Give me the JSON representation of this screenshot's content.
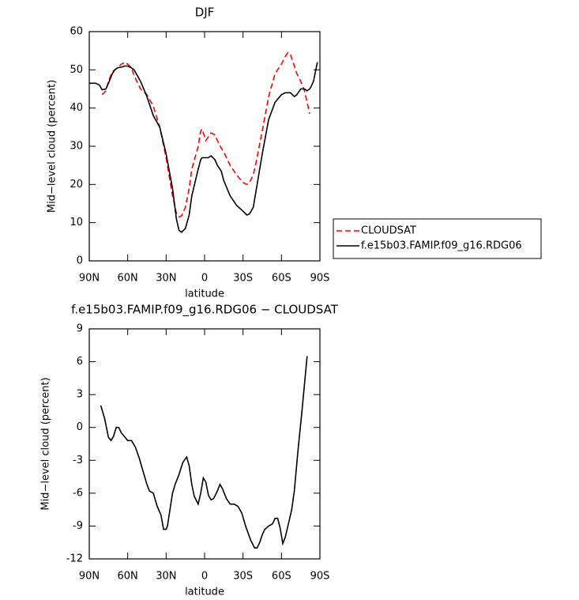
{
  "chart_data": [
    {
      "type": "line",
      "title": "DJF",
      "xlabel": "latitude",
      "ylabel": "Mid−level cloud (percent)",
      "x": [
        90,
        87,
        85,
        82,
        80,
        77,
        75,
        72,
        70,
        68,
        65,
        62,
        60,
        57,
        55,
        50,
        45,
        40,
        35,
        30,
        25,
        22,
        20,
        18,
        15,
        12,
        10,
        5,
        3,
        2,
        0,
        -1,
        -3,
        -5,
        -8,
        -10,
        -13,
        -15,
        -20,
        -25,
        -30,
        -33,
        -35,
        -38,
        -40,
        -45,
        -50,
        -55,
        -60,
        -63,
        -65,
        -67,
        -70,
        -72,
        -75,
        -78,
        -80,
        -82,
        -83,
        -85,
        -88
      ],
      "series": [
        {
          "name": "CLOUDSAT",
          "color": "#ff0000",
          "line_style": "dashed",
          "values": [
            null,
            null,
            null,
            null,
            43.5,
            44.5,
            47,
            49.5,
            50,
            50.5,
            51.5,
            52,
            51.5,
            50.5,
            48.5,
            45,
            43.5,
            40.5,
            35,
            27,
            17,
            12.5,
            11.5,
            11.8,
            14,
            19,
            24,
            30,
            34,
            34.5,
            32.5,
            31.5,
            32.5,
            33.5,
            33,
            31.5,
            29.5,
            28.5,
            25,
            22.5,
            20.5,
            20,
            20.5,
            22.5,
            25.5,
            34,
            43,
            49,
            51.5,
            53.5,
            54.5,
            54,
            51,
            49,
            47,
            44.5,
            41.5,
            38.5,
            null,
            null,
            null
          ]
        },
        {
          "name": "f.e15b03.FAMIP.f09_g16.RDG06",
          "color": "#000000",
          "line_style": "solid",
          "values": [
            46.5,
            46.5,
            46.5,
            46,
            44.8,
            45,
            46.5,
            49,
            50,
            50.5,
            50.7,
            51,
            51,
            50.5,
            50,
            47,
            43,
            38,
            35,
            28,
            19,
            11,
            8,
            7.5,
            8.5,
            12,
            17,
            24,
            26.5,
            27,
            27,
            27,
            27,
            27.5,
            26.5,
            25,
            23.5,
            21,
            17,
            14.5,
            13,
            12,
            12.3,
            14,
            18,
            28,
            37,
            41.5,
            43.5,
            44,
            44,
            44,
            43,
            43.5,
            45,
            45,
            44.5,
            45,
            45.5,
            47,
            52
          ]
        }
      ],
      "xlim": [
        90,
        -90
      ],
      "xticks": [
        {
          "value": 90,
          "label": "90N"
        },
        {
          "value": 60,
          "label": "60N"
        },
        {
          "value": 30,
          "label": "30N"
        },
        0,
        {
          "value": -30,
          "label": "30S"
        },
        {
          "value": -60,
          "label": "60S"
        },
        {
          "value": -90,
          "label": "90S"
        }
      ],
      "ylim": [
        0,
        60
      ],
      "yticks": [
        0,
        10,
        20,
        30,
        40,
        50,
        60
      ],
      "legend": "right"
    },
    {
      "type": "line",
      "title": "f.e15b03.FAMIP.f09_g16.RDG06 − CLOUDSAT",
      "xlabel": "latitude",
      "ylabel": "Mid−level cloud (percent)",
      "x": [
        81,
        78,
        75,
        73,
        71,
        69,
        67,
        65,
        62,
        60,
        57,
        54,
        51,
        48,
        45,
        43,
        40,
        37,
        34,
        32,
        30,
        29,
        27,
        25,
        23,
        20,
        17,
        14,
        12,
        10,
        8,
        5,
        3,
        1,
        -1,
        -3,
        -5,
        -7,
        -10,
        -12,
        -14,
        -17,
        -20,
        -23,
        -26,
        -29,
        -32,
        -36,
        -39,
        -41,
        -43,
        -45,
        -47,
        -50,
        -53,
        -55,
        -57,
        -59,
        -61,
        -63,
        -66,
        -68,
        -70,
        -73,
        -76,
        -80
      ],
      "series": [
        {
          "color": "#000000",
          "line_style": "solid",
          "values": [
            2.0,
            0.8,
            -0.9,
            -1.2,
            -0.8,
            0,
            0,
            -0.5,
            -0.9,
            -1.2,
            -1.2,
            -1.8,
            -2.8,
            -4.0,
            -5.2,
            -5.8,
            -6.0,
            -7.2,
            -8.0,
            -9.3,
            -9.3,
            -9.0,
            -7.5,
            -6.0,
            -5.2,
            -4.3,
            -3.2,
            -2.7,
            -3.5,
            -5.2,
            -6.3,
            -7.0,
            -6.0,
            -4.6,
            -5.0,
            -6.2,
            -6.6,
            -6.5,
            -5.8,
            -5.2,
            -5.6,
            -6.5,
            -7.0,
            -7.0,
            -7.2,
            -7.8,
            -9.0,
            -10.3,
            -11.0,
            -11.0,
            -10.5,
            -9.8,
            -9.3,
            -9.0,
            -8.8,
            -8.3,
            -8.3,
            -9.2,
            -10.6,
            -10.0,
            -8.5,
            -7.5,
            -5.8,
            -2.0,
            1.5,
            6.5
          ]
        }
      ],
      "xlim": [
        90,
        -90
      ],
      "xticks": [
        {
          "value": 90,
          "label": "90N"
        },
        {
          "value": 60,
          "label": "60N"
        },
        {
          "value": 30,
          "label": "30N"
        },
        0,
        {
          "value": -30,
          "label": "30S"
        },
        {
          "value": -60,
          "label": "60S"
        },
        {
          "value": -90,
          "label": "90S"
        }
      ],
      "ylim": [
        -12,
        9
      ],
      "yticks": [
        -12,
        -9,
        -6,
        -3,
        0,
        3,
        6,
        9
      ]
    }
  ]
}
